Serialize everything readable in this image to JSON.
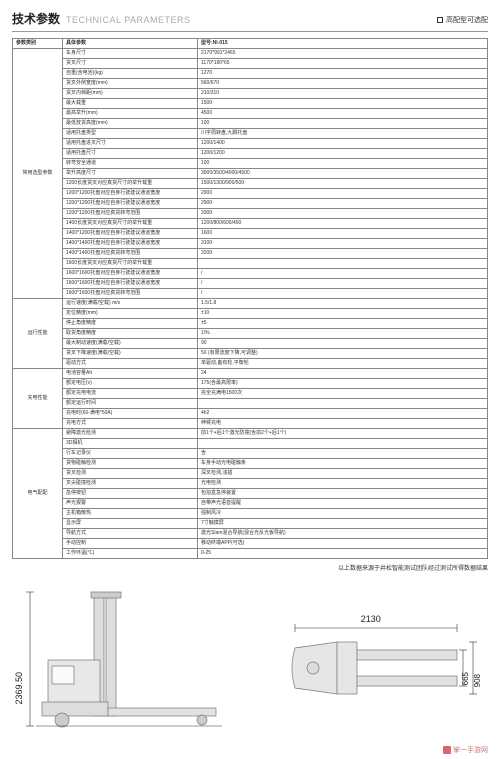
{
  "header": {
    "title_zh": "技术参数",
    "title_en": "TECHNICAL PARAMETERS",
    "badge": "高配型可选配"
  },
  "columns": {
    "category": "参数类别",
    "param": "具体参数",
    "value": "型号:NI-015"
  },
  "groups": [
    {
      "name": "常用选型参数",
      "blank_rows": 0,
      "rows": [
        {
          "p": "车身尺寸",
          "v": "2170*991*2465"
        },
        {
          "p": "货叉尺寸",
          "v": "1170*190*65"
        },
        {
          "p": "自重(含电池)(kg)",
          "v": "1270"
        },
        {
          "p": "货叉外侧宽度(mm)",
          "v": "560/670"
        },
        {
          "p": "货叉内档距(mm)",
          "v": "210/310"
        },
        {
          "p": "最大载重",
          "v": "1500"
        },
        {
          "p": "最高举升(mm)",
          "v": "4500"
        },
        {
          "p": "最低放货高度(mm)",
          "v": "100"
        },
        {
          "p": "适用托盘类型",
          "v": "川字周转盘,九脚托盘"
        },
        {
          "p": "适用托盘进叉尺寸",
          "v": "1200/1400"
        },
        {
          "p": "适用托盘尺寸",
          "v": "1200/1200"
        },
        {
          "p": "转弯安全通道",
          "v": "100"
        },
        {
          "p": "举升高度尺寸",
          "v": "3000/3500/4000/4500"
        },
        {
          "p": "1200长度货叉对应真货尺寸的举升载重",
          "v": "1500/1300/900/500"
        },
        {
          "p": "1200*1200托盘对应自身行驶建议通道宽度",
          "v": "2900"
        },
        {
          "p": "1200*1200托盘对应自身行驶建议通道宽度",
          "v": "2900"
        },
        {
          "p": "1200*1200托盘对应真货转弯范围",
          "v": "3300"
        },
        {
          "p": "1400长度货叉对应真货尺寸的举升载重",
          "v": "1200/800/600/450"
        },
        {
          "p": "1400*1200托盘对应自身行驶建议通道宽度",
          "v": "1600"
        },
        {
          "p": "1400*1400托盘对应自身行驶建议通道宽度",
          "v": "3100"
        },
        {
          "p": "1400*1400托盘对应真货转弯范围",
          "v": "3200"
        },
        {
          "p": "1600长度货叉对应真货尺寸的举升载重",
          "v": ""
        },
        {
          "p": "1600*1600托盘对应自身行驶建议通道宽度",
          "v": "/"
        },
        {
          "p": "1600*1600托盘对应自身行驶建议通道宽度",
          "v": "/"
        },
        {
          "p": "1600*1600托盘对应真货转弯范围",
          "v": "/"
        }
      ]
    },
    {
      "name": "运行性能",
      "blank_rows": 0,
      "rows": [
        {
          "p": "运行速度(满载/空载) m/s",
          "v": "1.5/1.8"
        },
        {
          "p": "定位精度(mm)",
          "v": "±10"
        },
        {
          "p": "停止角度精度",
          "v": "±5"
        },
        {
          "p": "取货角度精度",
          "v": "1/%"
        },
        {
          "p": "最大制动速度(满载/空载)",
          "v": "90"
        },
        {
          "p": "货叉下降速度(满载/空载)",
          "v": "50 (有限流度下降,可调整)"
        },
        {
          "p": "驱动方式",
          "v": "单驱动,备有轮,平衡轮"
        }
      ]
    },
    {
      "name": "充电性能",
      "blank_rows": 0,
      "rows": [
        {
          "p": "电池容量Ah",
          "v": "24"
        },
        {
          "p": "额定电压(v)",
          "v": "175(含最高限率)"
        },
        {
          "p": "额定充电电流",
          "v": "完全充满电1500次"
        },
        {
          "p": "额定运行时间",
          "v": ""
        },
        {
          "p": "充电时(60-满电*50A)",
          "v": "4h2"
        },
        {
          "p": "充电方式",
          "v": "伸臂充电"
        }
      ]
    },
    {
      "name": "电气配配",
      "blank_rows": 0,
      "rows": [
        {
          "p": "避障激光检测",
          "v": "前1个+后1个激光防撞(含前2个+后1个)"
        },
        {
          "p": "3D相机",
          "v": ""
        },
        {
          "p": "行车记录仪",
          "v": "含"
        },
        {
          "p": "货物碰触检测",
          "v": "车身手动光电碰触条"
        },
        {
          "p": "货叉检测",
          "v": "深叉检测,浅插"
        },
        {
          "p": "叉尖碰撞检测",
          "v": "光电检测"
        },
        {
          "p": "急停按钮",
          "v": "包拍盒急停装置"
        },
        {
          "p": "声光报警",
          "v": "自带声光语音提醒"
        },
        {
          "p": "主机箱散热",
          "v": "强制风冷"
        },
        {
          "p": "显示屏",
          "v": "7寸触摸屏"
        },
        {
          "p": "导航方式",
          "v": "激光Slam混合导航(混合光反光板导航)"
        },
        {
          "p": "手动控制",
          "v": "移动终端APP(可选)"
        },
        {
          "p": "工作环温(℃)",
          "v": "0-25"
        }
      ]
    }
  ],
  "footnote": "以上数据来源于井松智能测试团队经过测试所得数据结果",
  "diagram": {
    "height_label": "2369.50",
    "width_label": "2130",
    "h1_label": "665",
    "h2_label": "908"
  },
  "footer": {
    "left": "",
    "right": "掌一手游网"
  }
}
